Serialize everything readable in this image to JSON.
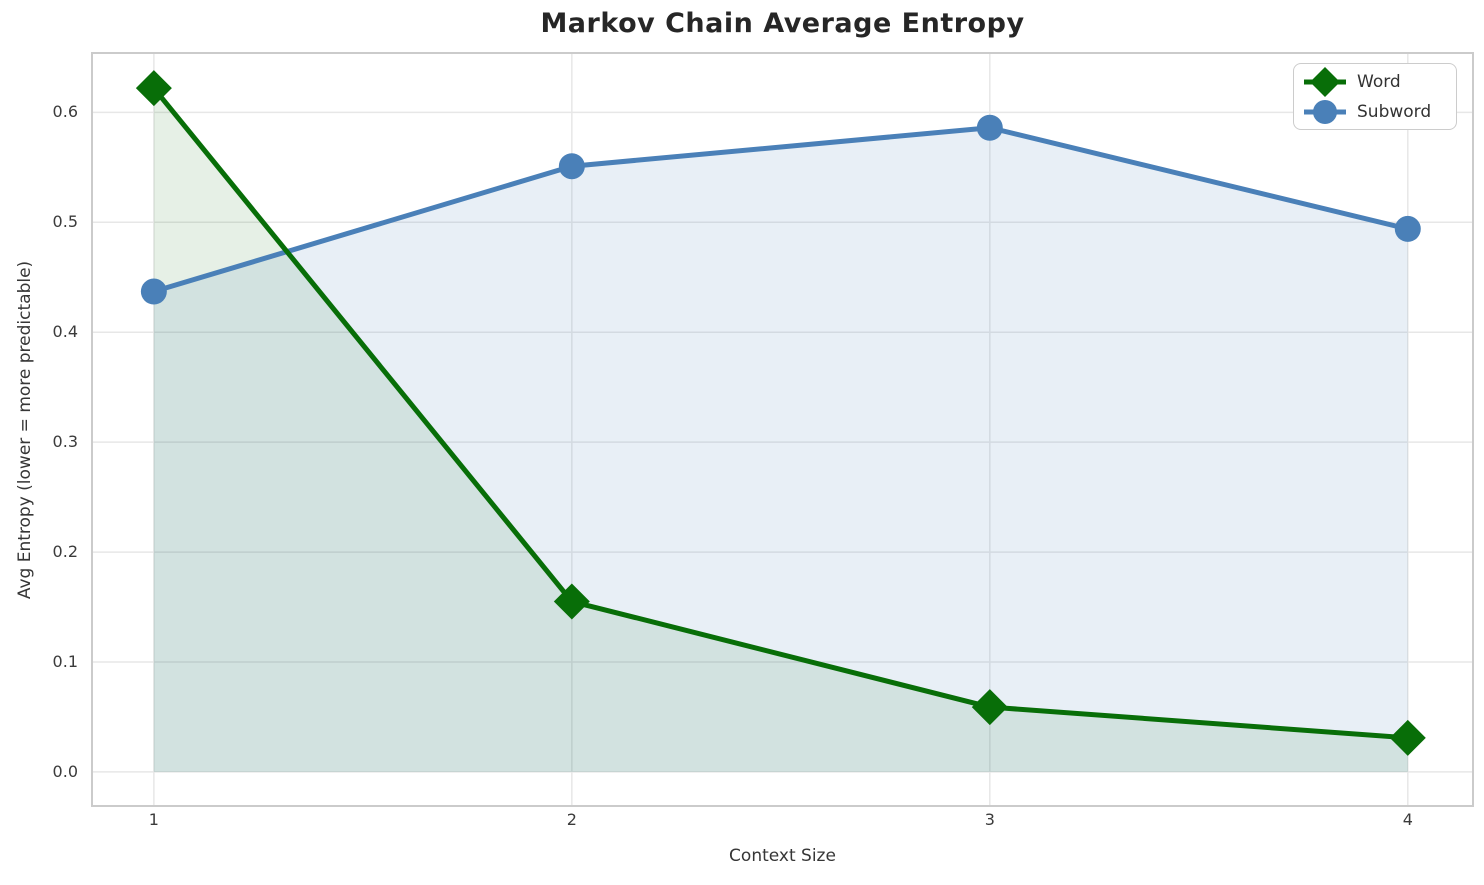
{
  "chart_data": {
    "type": "line",
    "title": "Markov Chain Average Entropy",
    "xlabel": "Context Size",
    "ylabel": "Avg Entropy (lower = more predictable)",
    "x": [
      1,
      2,
      3,
      4
    ],
    "xtick_labels": [
      "1",
      "2",
      "3",
      "4"
    ],
    "yticks": [
      0.0,
      0.1,
      0.2,
      0.3,
      0.4,
      0.5,
      0.6
    ],
    "ytick_labels": [
      "0.0",
      "0.1",
      "0.2",
      "0.3",
      "0.4",
      "0.5",
      "0.6"
    ],
    "xlim": [
      0.852,
      4.156
    ],
    "ylim": [
      -0.031,
      0.654
    ],
    "grid": true,
    "area_baseline": 0.0,
    "legend_position": "upper right",
    "series": [
      {
        "name": "Word",
        "marker": "diamond",
        "color": "#086e08",
        "fill_opacity": 0.1,
        "values": [
          0.622,
          0.155,
          0.059,
          0.031
        ]
      },
      {
        "name": "Subword",
        "marker": "circle",
        "color": "#4a80b8",
        "fill_opacity": 0.13,
        "values": [
          0.437,
          0.551,
          0.586,
          0.494
        ]
      }
    ],
    "style": {
      "grid_color": "#e7e7e7",
      "spine_color": "#cbcbcb",
      "line_width": 5
    }
  }
}
